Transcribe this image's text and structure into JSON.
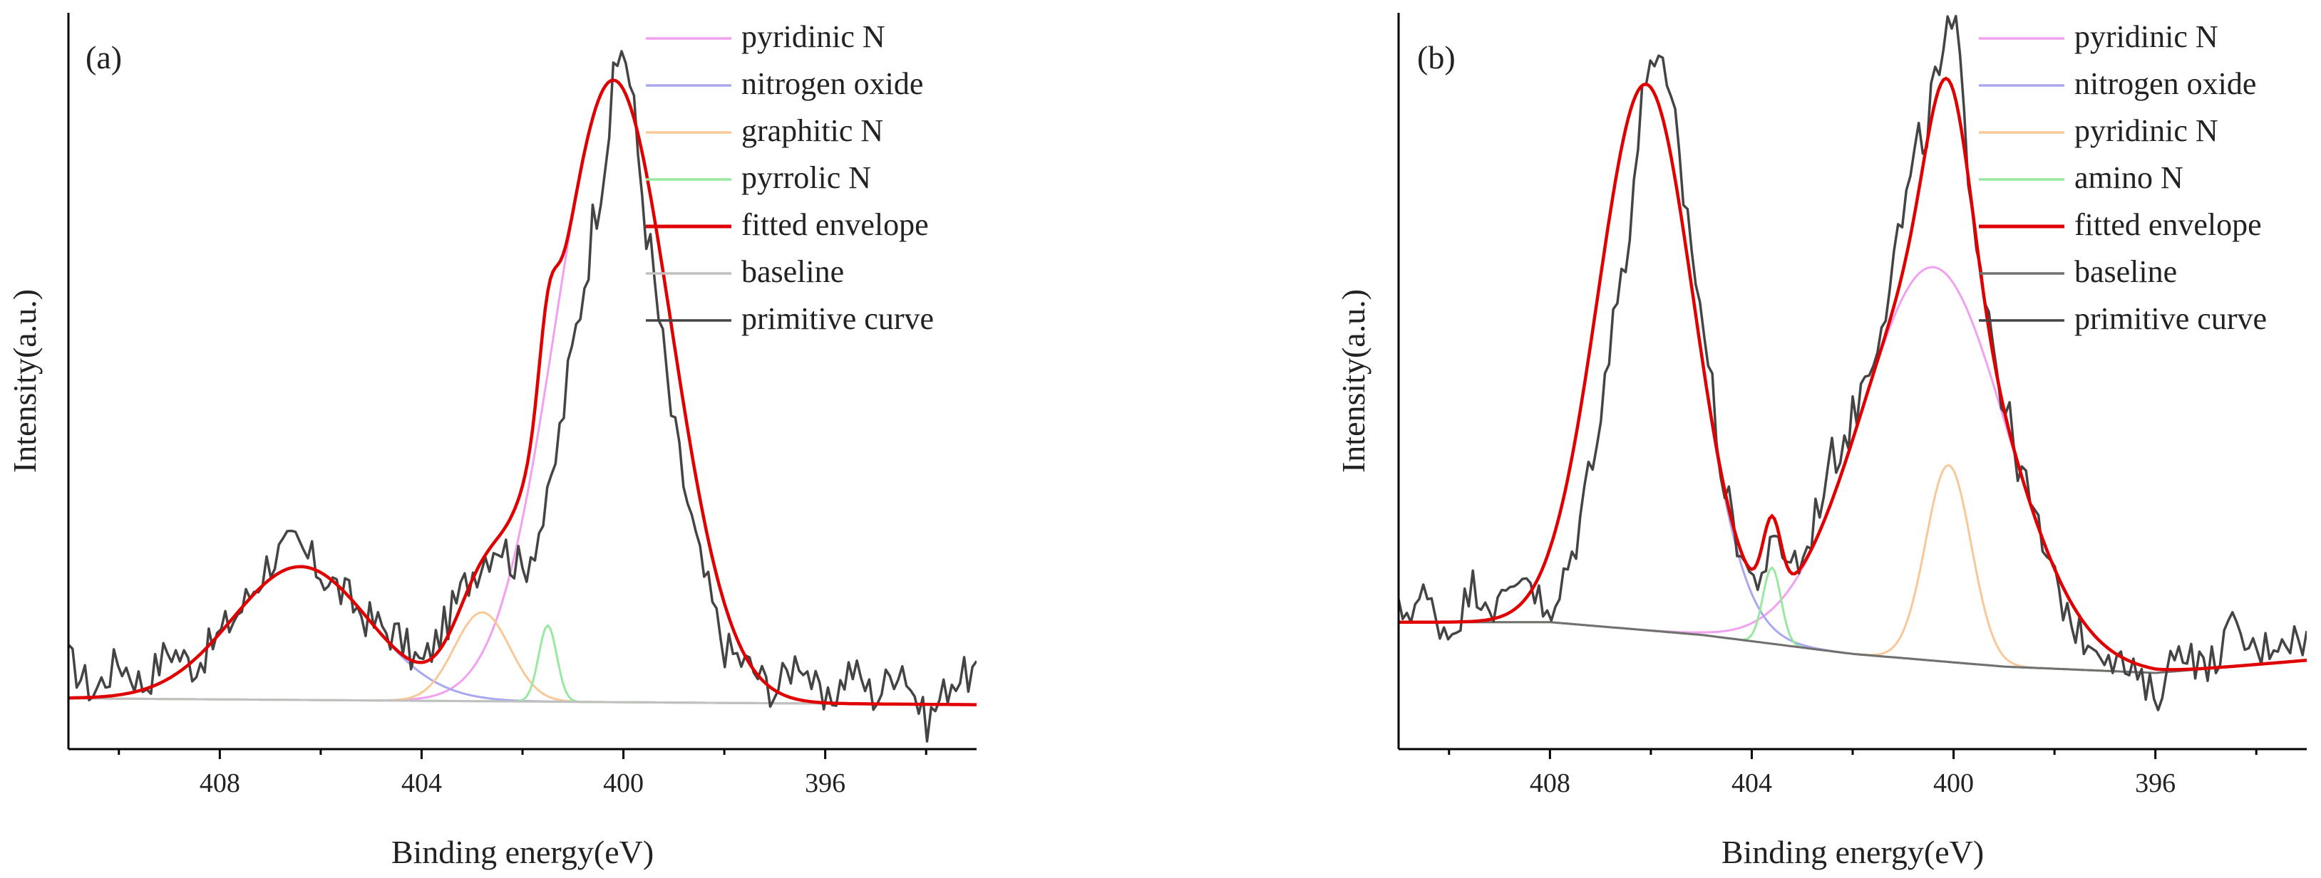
{
  "chart_data": [
    {
      "type": "line",
      "panel_label": "(a)",
      "xlabel": "Binding energy(eV)",
      "ylabel": "Intensity(a.u.)",
      "xlim": [
        411,
        393
      ],
      "xreversed": true,
      "ylim": [
        -0.08,
        1.08
      ],
      "xticks": [
        408,
        404,
        400,
        396
      ],
      "xtick_labels": [
        "408",
        "404",
        "400",
        "396"
      ],
      "yticks_shown": false,
      "legend_position": "top-right",
      "legend": [
        {
          "name": "pyridinic N",
          "color": "#f2a0f0"
        },
        {
          "name": "nitrogen oxide",
          "color": "#a8a8f0"
        },
        {
          "name": "graphitic N",
          "color": "#f8c898"
        },
        {
          "name": "pyrrolic N",
          "color": "#98e8a0"
        },
        {
          "name": "fitted envelope",
          "color": "#e00000"
        },
        {
          "name": "baseline",
          "color": "#c0c0c0"
        },
        {
          "name": "primitive curve",
          "color": "#444444"
        }
      ],
      "baseline": {
        "x": [
          411,
          393
        ],
        "y": [
          0.0,
          -0.01
        ]
      },
      "components": [
        {
          "name": "pyridinic N",
          "color": "#f2a0f0",
          "center": 400.2,
          "height": 0.98,
          "sigma": 1.15
        },
        {
          "name": "nitrogen oxide",
          "color": "#a8a8f0",
          "center": 406.4,
          "height": 0.21,
          "sigma": 1.35
        },
        {
          "name": "graphitic N",
          "color": "#f8c898",
          "center": 402.8,
          "height": 0.14,
          "sigma": 0.55
        },
        {
          "name": "pyrrolic N",
          "color": "#98e8a0",
          "center": 401.5,
          "height": 0.12,
          "sigma": 0.18
        }
      ],
      "primitive_curve": {
        "color": "#444444",
        "x": [
          411.0,
          410.5,
          410.0,
          409.5,
          409.0,
          408.5,
          408.0,
          407.5,
          407.0,
          406.5,
          406.0,
          405.5,
          405.0,
          404.5,
          404.0,
          403.5,
          403.0,
          402.5,
          402.0,
          401.5,
          401.0,
          400.5,
          400.0,
          399.5,
          399.0,
          398.5,
          398.0,
          397.5,
          397.0,
          396.5,
          396.0,
          395.5,
          395.0,
          394.5,
          394.0,
          393.5,
          393.0
        ],
        "y": [
          0.06,
          0.01,
          0.06,
          0.02,
          0.08,
          0.05,
          0.1,
          0.15,
          0.22,
          0.24,
          0.2,
          0.16,
          0.12,
          0.1,
          0.05,
          0.12,
          0.2,
          0.25,
          0.2,
          0.3,
          0.55,
          0.8,
          1.05,
          0.72,
          0.42,
          0.22,
          0.08,
          0.05,
          0.01,
          0.07,
          -0.02,
          0.05,
          0.0,
          0.06,
          -0.04,
          0.03,
          0.04
        ]
      }
    },
    {
      "type": "line",
      "panel_label": "(b)",
      "xlabel": "Binding energy(eV)",
      "ylabel": "Intensity(a.u.)",
      "xlim": [
        411,
        393
      ],
      "xreversed": true,
      "ylim": [
        -0.14,
        1.02
      ],
      "xticks": [
        408,
        404,
        400,
        396
      ],
      "xtick_labels": [
        "408",
        "404",
        "400",
        "396"
      ],
      "yticks_shown": false,
      "legend_position": "top-right",
      "legend": [
        {
          "name": "pyridinic N",
          "color": "#f2a0f0"
        },
        {
          "name": "nitrogen oxide",
          "color": "#a8a8f0"
        },
        {
          "name": "pyridinic N",
          "color": "#f8c898"
        },
        {
          "name": "amino N",
          "color": "#98e8a0"
        },
        {
          "name": "fitted envelope",
          "color": "#e00000"
        },
        {
          "name": "baseline",
          "color": "#707070"
        },
        {
          "name": "primitive curve",
          "color": "#444444"
        }
      ],
      "baseline": {
        "x": [
          411,
          408,
          405,
          402,
          399,
          396,
          393
        ],
        "y": [
          0.06,
          0.06,
          0.04,
          0.01,
          -0.01,
          -0.02,
          0.0
        ]
      },
      "components": [
        {
          "name": "pyridinic N",
          "color": "#f2a0f0",
          "center": 400.4,
          "height": 0.62,
          "sigma": 1.45
        },
        {
          "name": "nitrogen oxide",
          "color": "#a8a8f0",
          "center": 406.1,
          "height": 0.86,
          "sigma": 0.95
        },
        {
          "name": "pyridinic N",
          "color": "#f8c898",
          "center": 400.1,
          "height": 0.31,
          "sigma": 0.45
        },
        {
          "name": "amino N",
          "color": "#98e8a0",
          "center": 403.6,
          "height": 0.12,
          "sigma": 0.18
        }
      ],
      "primitive_curve": {
        "color": "#444444",
        "x": [
          411.0,
          410.5,
          410.0,
          409.5,
          409.0,
          408.5,
          408.0,
          407.5,
          407.0,
          406.5,
          406.0,
          405.5,
          405.0,
          404.5,
          404.0,
          403.5,
          403.0,
          402.5,
          402.0,
          401.5,
          401.0,
          400.5,
          400.0,
          399.5,
          399.0,
          398.5,
          398.0,
          397.5,
          397.0,
          396.5,
          396.0,
          395.5,
          395.0,
          394.5,
          394.0,
          393.5,
          393.0
        ],
        "y": [
          0.07,
          0.1,
          0.04,
          0.12,
          0.08,
          0.15,
          0.05,
          0.18,
          0.4,
          0.65,
          0.98,
          0.82,
          0.55,
          0.25,
          0.12,
          0.18,
          0.15,
          0.3,
          0.38,
          0.52,
          0.7,
          0.86,
          1.0,
          0.65,
          0.4,
          0.25,
          0.12,
          0.04,
          0.02,
          -0.02,
          -0.06,
          0.03,
          -0.02,
          0.05,
          0.01,
          0.04,
          0.03
        ]
      }
    }
  ]
}
